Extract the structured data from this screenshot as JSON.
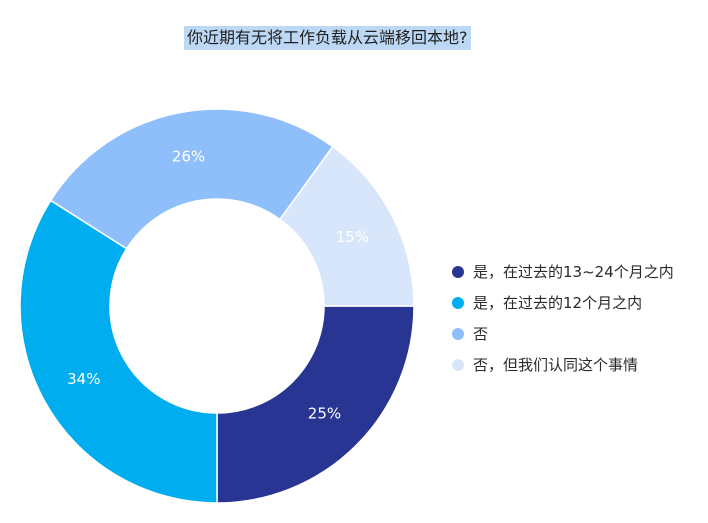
{
  "chart_data": {
    "type": "pie",
    "variant": "donut",
    "title": "你近期有无将工作负载从云端移回本地?",
    "categories": [
      "是，在过去的13~24个月之内",
      "是，在过去的12个月之内",
      "否",
      "否，但我们认同这个事情"
    ],
    "values": [
      25,
      34,
      26,
      15
    ],
    "value_labels": [
      "25%",
      "34%",
      "26%",
      "15%"
    ],
    "colors": [
      "#283593",
      "#00aeef",
      "#8fbffa",
      "#d8e6fc"
    ],
    "label_colors": [
      "#ffffff",
      "#ffffff",
      "#ffffff",
      "#ffffff"
    ],
    "legend_position": "right"
  }
}
